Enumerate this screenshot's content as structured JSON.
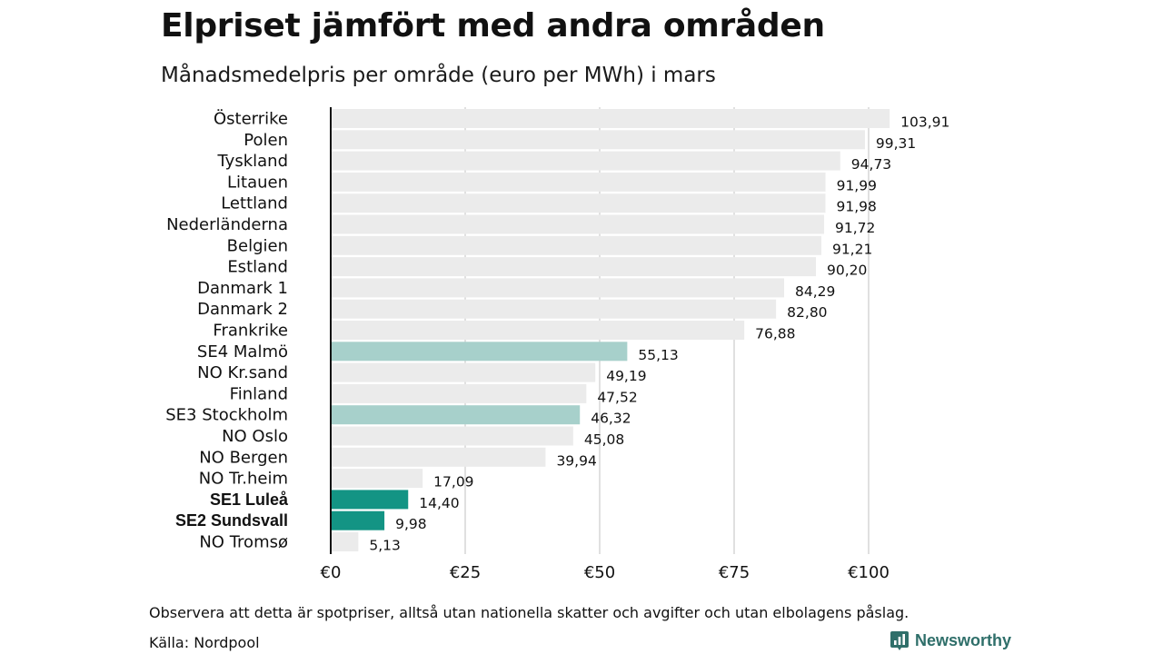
{
  "title": "Elpriset jämfört med andra områden",
  "subtitle": "Månadsmedelpris per område (euro per MWh) i mars",
  "note": "Observera att detta är spotpriser, alltså utan nationella skatter och avgifter och utan elbolagens påslag.",
  "source": "Källa: Nordpool",
  "brand": {
    "name": "Newsworthy",
    "icon": "newsworthy-logo-icon"
  },
  "colors": {
    "default": "#ebebeb",
    "highlight_light": "#a7d0cb",
    "highlight_dark": "#139484",
    "axis": "#111111",
    "grid": "#cccccc"
  },
  "chart_data": {
    "type": "bar",
    "orientation": "horizontal",
    "xlim": [
      0,
      100
    ],
    "x_ticks": [
      "€0",
      "€25",
      "€50",
      "€75",
      "€100"
    ],
    "x_tick_values": [
      0,
      25,
      50,
      75,
      100
    ],
    "grid": true,
    "categories": [
      "Österrike",
      "Polen",
      "Tyskland",
      "Litauen",
      "Lettland",
      "Nederländerna",
      "Belgien",
      "Estland",
      "Danmark 1",
      "Danmark 2",
      "Frankrike",
      "SE4 Malmö",
      "NO Kr.sand",
      "Finland",
      "SE3 Stockholm",
      "NO Oslo",
      "NO Bergen",
      "NO Tr.heim",
      "SE1 Luleå",
      "SE2 Sundsvall",
      "NO Tromsø"
    ],
    "values": [
      103.91,
      99.31,
      94.73,
      91.99,
      91.98,
      91.72,
      91.21,
      90.2,
      84.29,
      82.8,
      76.88,
      55.13,
      49.19,
      47.52,
      46.32,
      45.08,
      39.94,
      17.09,
      14.4,
      9.98,
      5.13
    ],
    "value_labels": [
      "103,91",
      "99,31",
      "94,73",
      "91,99",
      "91,98",
      "91,72",
      "91,21",
      "90,20",
      "84,29",
      "82,80",
      "76,88",
      "55,13",
      "49,19",
      "47,52",
      "46,32",
      "45,08",
      "39,94",
      "17,09",
      "14,40",
      "9,98",
      "5,13"
    ],
    "highlight": [
      "none",
      "none",
      "none",
      "none",
      "none",
      "none",
      "none",
      "none",
      "none",
      "none",
      "none",
      "light",
      "none",
      "none",
      "light",
      "none",
      "none",
      "none",
      "dark",
      "dark",
      "none"
    ]
  }
}
